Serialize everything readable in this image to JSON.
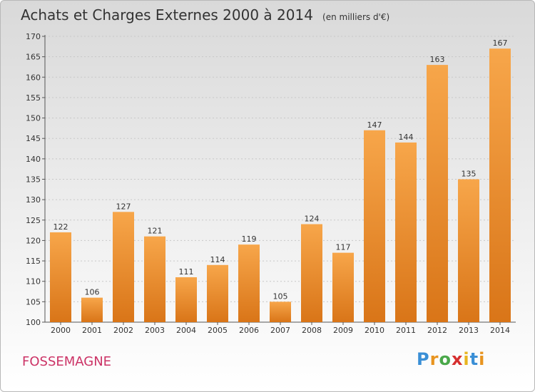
{
  "title": "Achats et Charges Externes 2000 à 2014",
  "unit": "(en milliers d'€)",
  "commune": "FOSSEMAGNE",
  "logo": {
    "letters": [
      "P",
      "r",
      "o",
      "x",
      "i",
      "t",
      "i"
    ],
    "colors": [
      "#3a8fd6",
      "#e8941f",
      "#4aa84a",
      "#d62f2f",
      "#e8b41f",
      "#3a8fd6",
      "#e8941f"
    ]
  },
  "colors": {
    "bar_light": "#f7a64a",
    "bar_dark": "#d97518",
    "commune": "#cc3366"
  },
  "chart_data": {
    "type": "bar",
    "categories": [
      "2000",
      "2001",
      "2002",
      "2003",
      "2004",
      "2005",
      "2006",
      "2007",
      "2008",
      "2009",
      "2010",
      "2011",
      "2012",
      "2013",
      "2014"
    ],
    "values": [
      122,
      106,
      127,
      121,
      111,
      114,
      119,
      105,
      124,
      117,
      147,
      144,
      163,
      135,
      167
    ],
    "title": "Achats et Charges Externes 2000 à 2014",
    "subtitle": "(en milliers d'€)",
    "ylim": [
      100,
      170
    ],
    "yticks": [
      100,
      105,
      110,
      115,
      120,
      125,
      130,
      135,
      140,
      145,
      150,
      155,
      160,
      165,
      170
    ],
    "grid": true,
    "legend": "none"
  }
}
